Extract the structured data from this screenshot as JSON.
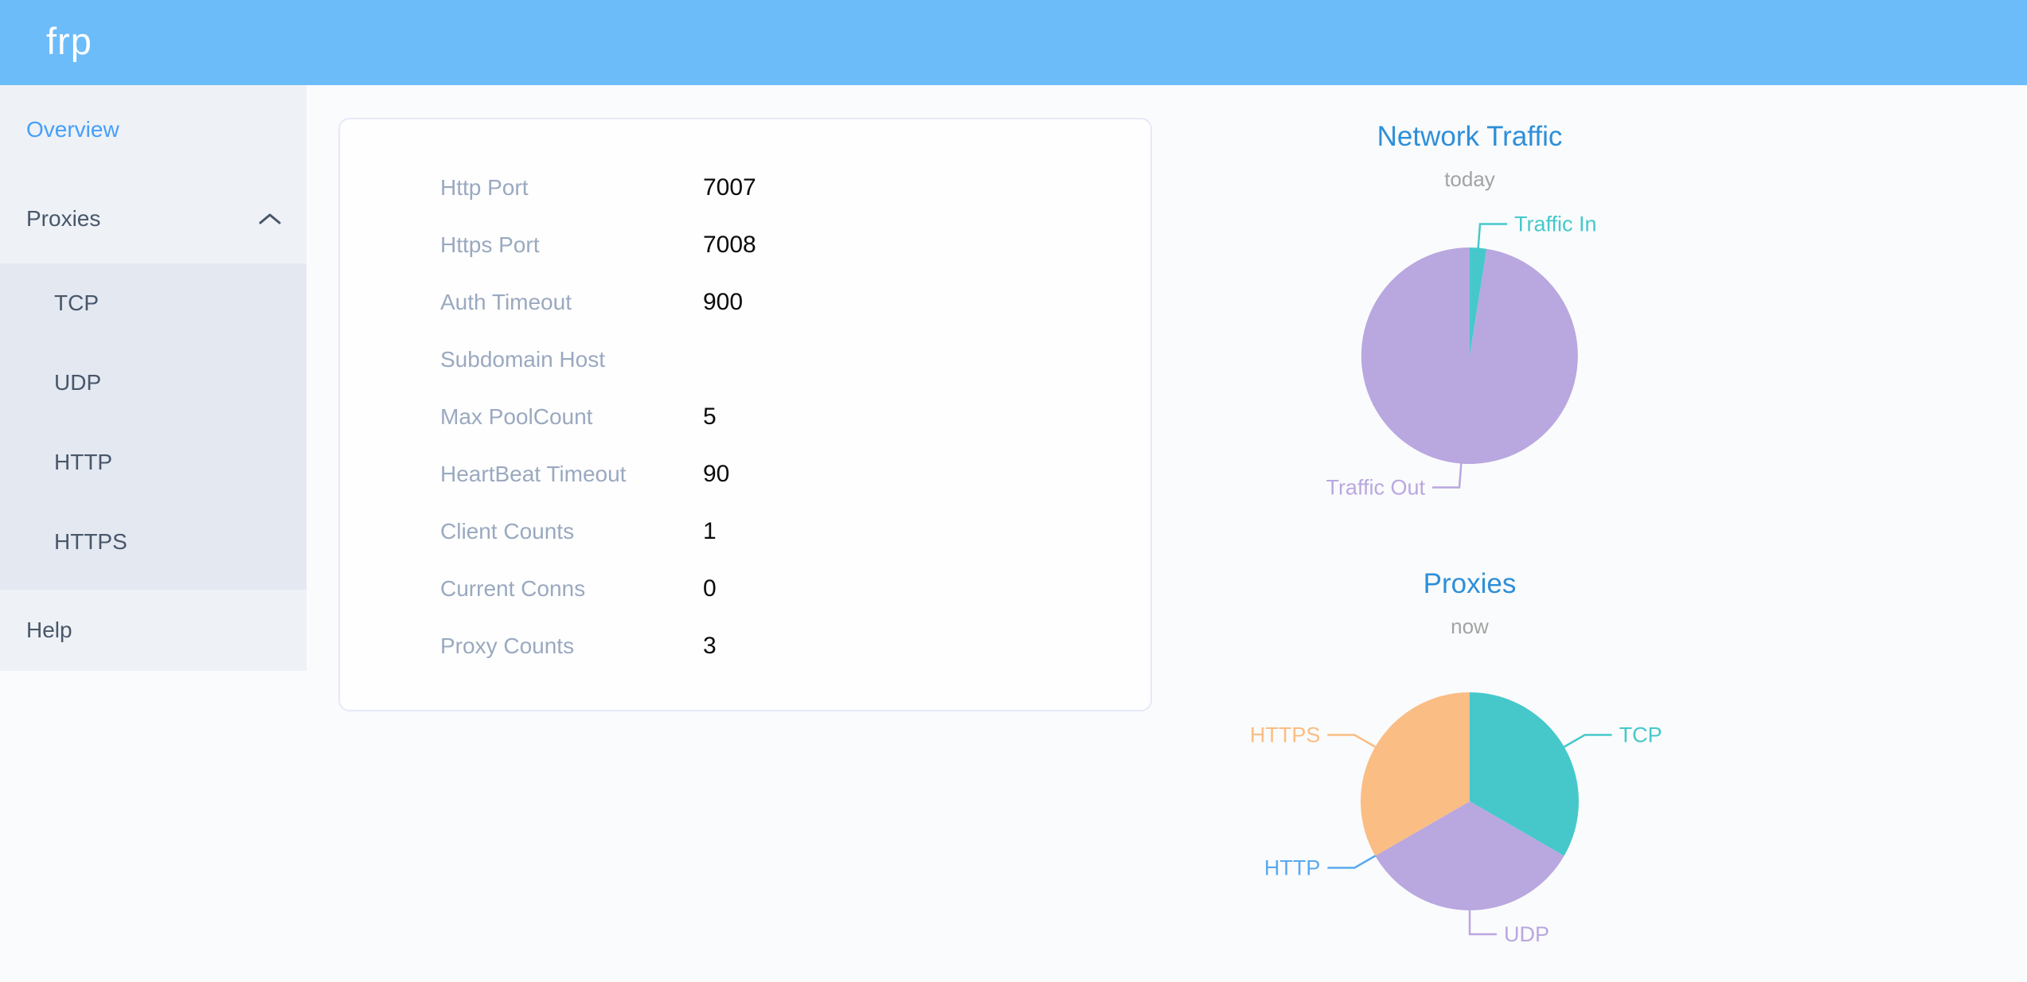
{
  "header": {
    "logo": "frp",
    "background_color": "#6cbcfa"
  },
  "sidebar": {
    "items": [
      {
        "label": "Overview",
        "active": true
      },
      {
        "label": "Proxies",
        "expanded": true
      },
      {
        "label": "Help"
      }
    ],
    "proxies_submenu": [
      "TCP",
      "UDP",
      "HTTP",
      "HTTPS"
    ],
    "active_color": "#459ff8",
    "text_color": "#48576a"
  },
  "server_info": {
    "rows": [
      {
        "label": "Http Port",
        "value": "7007"
      },
      {
        "label": "Https Port",
        "value": "7008"
      },
      {
        "label": "Auth Timeout",
        "value": "900"
      },
      {
        "label": "Subdomain Host",
        "value": ""
      },
      {
        "label": "Max PoolCount",
        "value": "5"
      },
      {
        "label": "HeartBeat Timeout",
        "value": "90"
      },
      {
        "label": "Client Counts",
        "value": "1"
      },
      {
        "label": "Current Conns",
        "value": "0"
      },
      {
        "label": "Proxy Counts",
        "value": "3"
      }
    ]
  },
  "chart_data": [
    {
      "type": "pie",
      "title": "Network Traffic",
      "subtitle": "today",
      "legend_position": "none",
      "label_style": "outside-leader-lines",
      "slices": [
        {
          "label": "Traffic In",
          "value": 2.5,
          "color": "#46c8cb"
        },
        {
          "label": "Traffic Out",
          "value": 97.5,
          "color": "#b9a7e0"
        }
      ]
    },
    {
      "type": "pie",
      "title": "Proxies",
      "subtitle": "now",
      "legend_position": "none",
      "label_style": "outside-leader-lines",
      "slices": [
        {
          "label": "TCP",
          "value": 1,
          "color": "#46c8cb"
        },
        {
          "label": "UDP",
          "value": 1,
          "color": "#b9a7e0"
        },
        {
          "label": "HTTP",
          "value": 0,
          "color": "#5aa9ef"
        },
        {
          "label": "HTTPS",
          "value": 1,
          "color": "#fabd84"
        }
      ]
    }
  ],
  "colors": {
    "chart_title": "#2d8fd9",
    "chart_subtitle": "#a3a3a3",
    "card_label": "#9aa9bf",
    "card_value": "#0b0b0b"
  }
}
